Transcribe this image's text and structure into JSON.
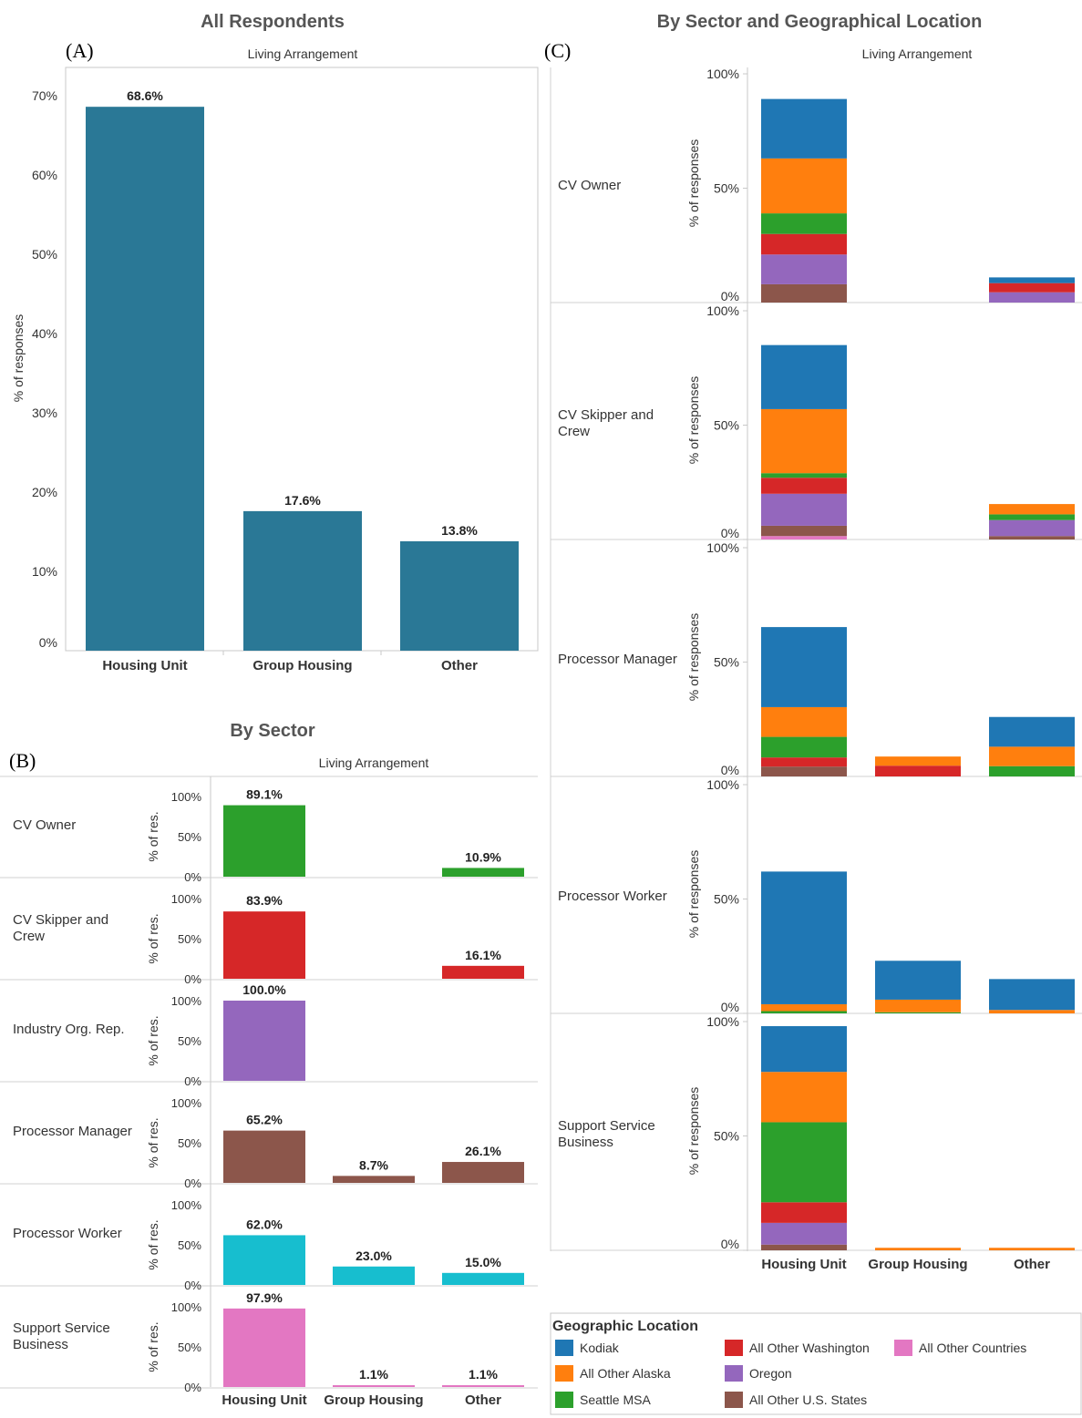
{
  "panels": {
    "a": {
      "title": "All Respondents",
      "letter": "(A)",
      "header": "Living Arrangement",
      "ylabel": "% of responses"
    },
    "b": {
      "title": "By Sector",
      "letter": "(B)",
      "header": "Living Arrangement",
      "ylabel": "% of res."
    },
    "c": {
      "title": "By Sector and Geographical Location",
      "letter": "(C)",
      "header": "Living Arrangement",
      "ylabel": "% of responses"
    }
  },
  "legend": {
    "title": "Geographic Location",
    "items": [
      {
        "label": "Kodiak",
        "color": "#1f77b4"
      },
      {
        "label": "All Other Alaska",
        "color": "#ff7f0e"
      },
      {
        "label": "Seattle MSA",
        "color": "#2ca02c"
      },
      {
        "label": "All Other Washington",
        "color": "#d62728"
      },
      {
        "label": "Oregon",
        "color": "#9467bd"
      },
      {
        "label": "All Other U.S. States",
        "color": "#8c564b"
      },
      {
        "label": "All Other Countries",
        "color": "#e377c2"
      }
    ]
  },
  "chart_data": [
    {
      "type": "bar",
      "title": "All Respondents",
      "header": "Living Arrangement",
      "ylabel": "% of responses",
      "categories": [
        "Housing Unit",
        "Group Housing",
        "Other"
      ],
      "values": [
        68.6,
        17.6,
        13.8
      ],
      "value_labels": [
        "68.6%",
        "17.6%",
        "13.8%"
      ],
      "yticks": [
        "0%",
        "10%",
        "20%",
        "30%",
        "40%",
        "50%",
        "60%",
        "70%"
      ],
      "ylim": [
        0,
        72
      ],
      "color": "#2a7896"
    },
    {
      "type": "bar",
      "title": "By Sector",
      "header": "Living Arrangement",
      "ylabel": "% of res.",
      "categories": [
        "Housing Unit",
        "Group Housing",
        "Other"
      ],
      "yticks": [
        "0%",
        "50%",
        "100%"
      ],
      "ylim": [
        0,
        100
      ],
      "rows": [
        {
          "name": "CV Owner",
          "color": "#2ca02c",
          "values": [
            89.1,
            0,
            10.9
          ],
          "labels": [
            "89.1%",
            "",
            "10.9%"
          ]
        },
        {
          "name": "CV Skipper and Crew",
          "color": "#d62728",
          "values": [
            83.9,
            0,
            16.1
          ],
          "labels": [
            "83.9%",
            "",
            "16.1%"
          ]
        },
        {
          "name": "Industry Org. Rep.",
          "color": "#9467bd",
          "values": [
            100.0,
            0,
            0
          ],
          "labels": [
            "100.0%",
            "",
            ""
          ]
        },
        {
          "name": "Processor Manager",
          "color": "#8c564b",
          "values": [
            65.2,
            8.7,
            26.1
          ],
          "labels": [
            "65.2%",
            "8.7%",
            "26.1%"
          ]
        },
        {
          "name": "Processor Worker",
          "color": "#17becf",
          "values": [
            62.0,
            23.0,
            15.0
          ],
          "labels": [
            "62.0%",
            "23.0%",
            "15.0%"
          ]
        },
        {
          "name": "Support Service Business",
          "color": "#e377c2",
          "values": [
            97.9,
            1.1,
            1.1
          ],
          "labels": [
            "97.9%",
            "1.1%",
            "1.1%"
          ]
        }
      ]
    },
    {
      "type": "bar",
      "stacked": true,
      "title": "By Sector and Geographical Location",
      "header": "Living Arrangement",
      "ylabel": "% of responses",
      "categories": [
        "Housing Unit",
        "Group Housing",
        "Other"
      ],
      "yticks": [
        "0%",
        "50%",
        "100%"
      ],
      "ylim": [
        0,
        100
      ],
      "series_names": [
        "Kodiak",
        "All Other Alaska",
        "Seattle MSA",
        "All Other Washington",
        "Oregon",
        "All Other U.S. States",
        "All Other Countries"
      ],
      "rows": [
        {
          "name": "CV Owner",
          "stacks": [
            [
              26,
              24,
              9,
              9,
              13,
              8,
              0
            ],
            [
              0,
              0,
              0,
              0,
              0,
              0,
              0
            ],
            [
              2.5,
              0,
              0,
              4,
              4.5,
              0,
              0
            ]
          ]
        },
        {
          "name": "CV Skipper and Crew",
          "stacks": [
            [
              28,
              28,
              2,
              7,
              14,
              4.5,
              1.5
            ],
            [
              0,
              0,
              0,
              0,
              0,
              0,
              0
            ],
            [
              0,
              4.5,
              2.5,
              0,
              7,
              1.5,
              0
            ]
          ]
        },
        {
          "name": "Processor Manager",
          "stacks": [
            [
              35,
              13,
              9,
              4,
              0,
              4.3,
              0
            ],
            [
              0,
              4,
              0,
              4.7,
              0,
              0,
              0
            ],
            [
              13,
              8.5,
              4.5,
              0,
              0,
              0,
              0
            ]
          ]
        },
        {
          "name": "Processor Worker",
          "stacks": [
            [
              58,
              3,
              1,
              0,
              0,
              0,
              0
            ],
            [
              17,
              5.5,
              0.5,
              0,
              0,
              0,
              0
            ],
            [
              13.5,
              1.5,
              0,
              0,
              0,
              0,
              0
            ]
          ]
        },
        {
          "name": "Support Service Business",
          "stacks": [
            [
              20,
              22,
              35,
              9,
              9.5,
              2.5,
              0
            ],
            [
              0,
              1.1,
              0,
              0,
              0,
              0,
              0
            ],
            [
              0,
              1.1,
              0,
              0,
              0,
              0,
              0
            ]
          ]
        }
      ]
    }
  ]
}
